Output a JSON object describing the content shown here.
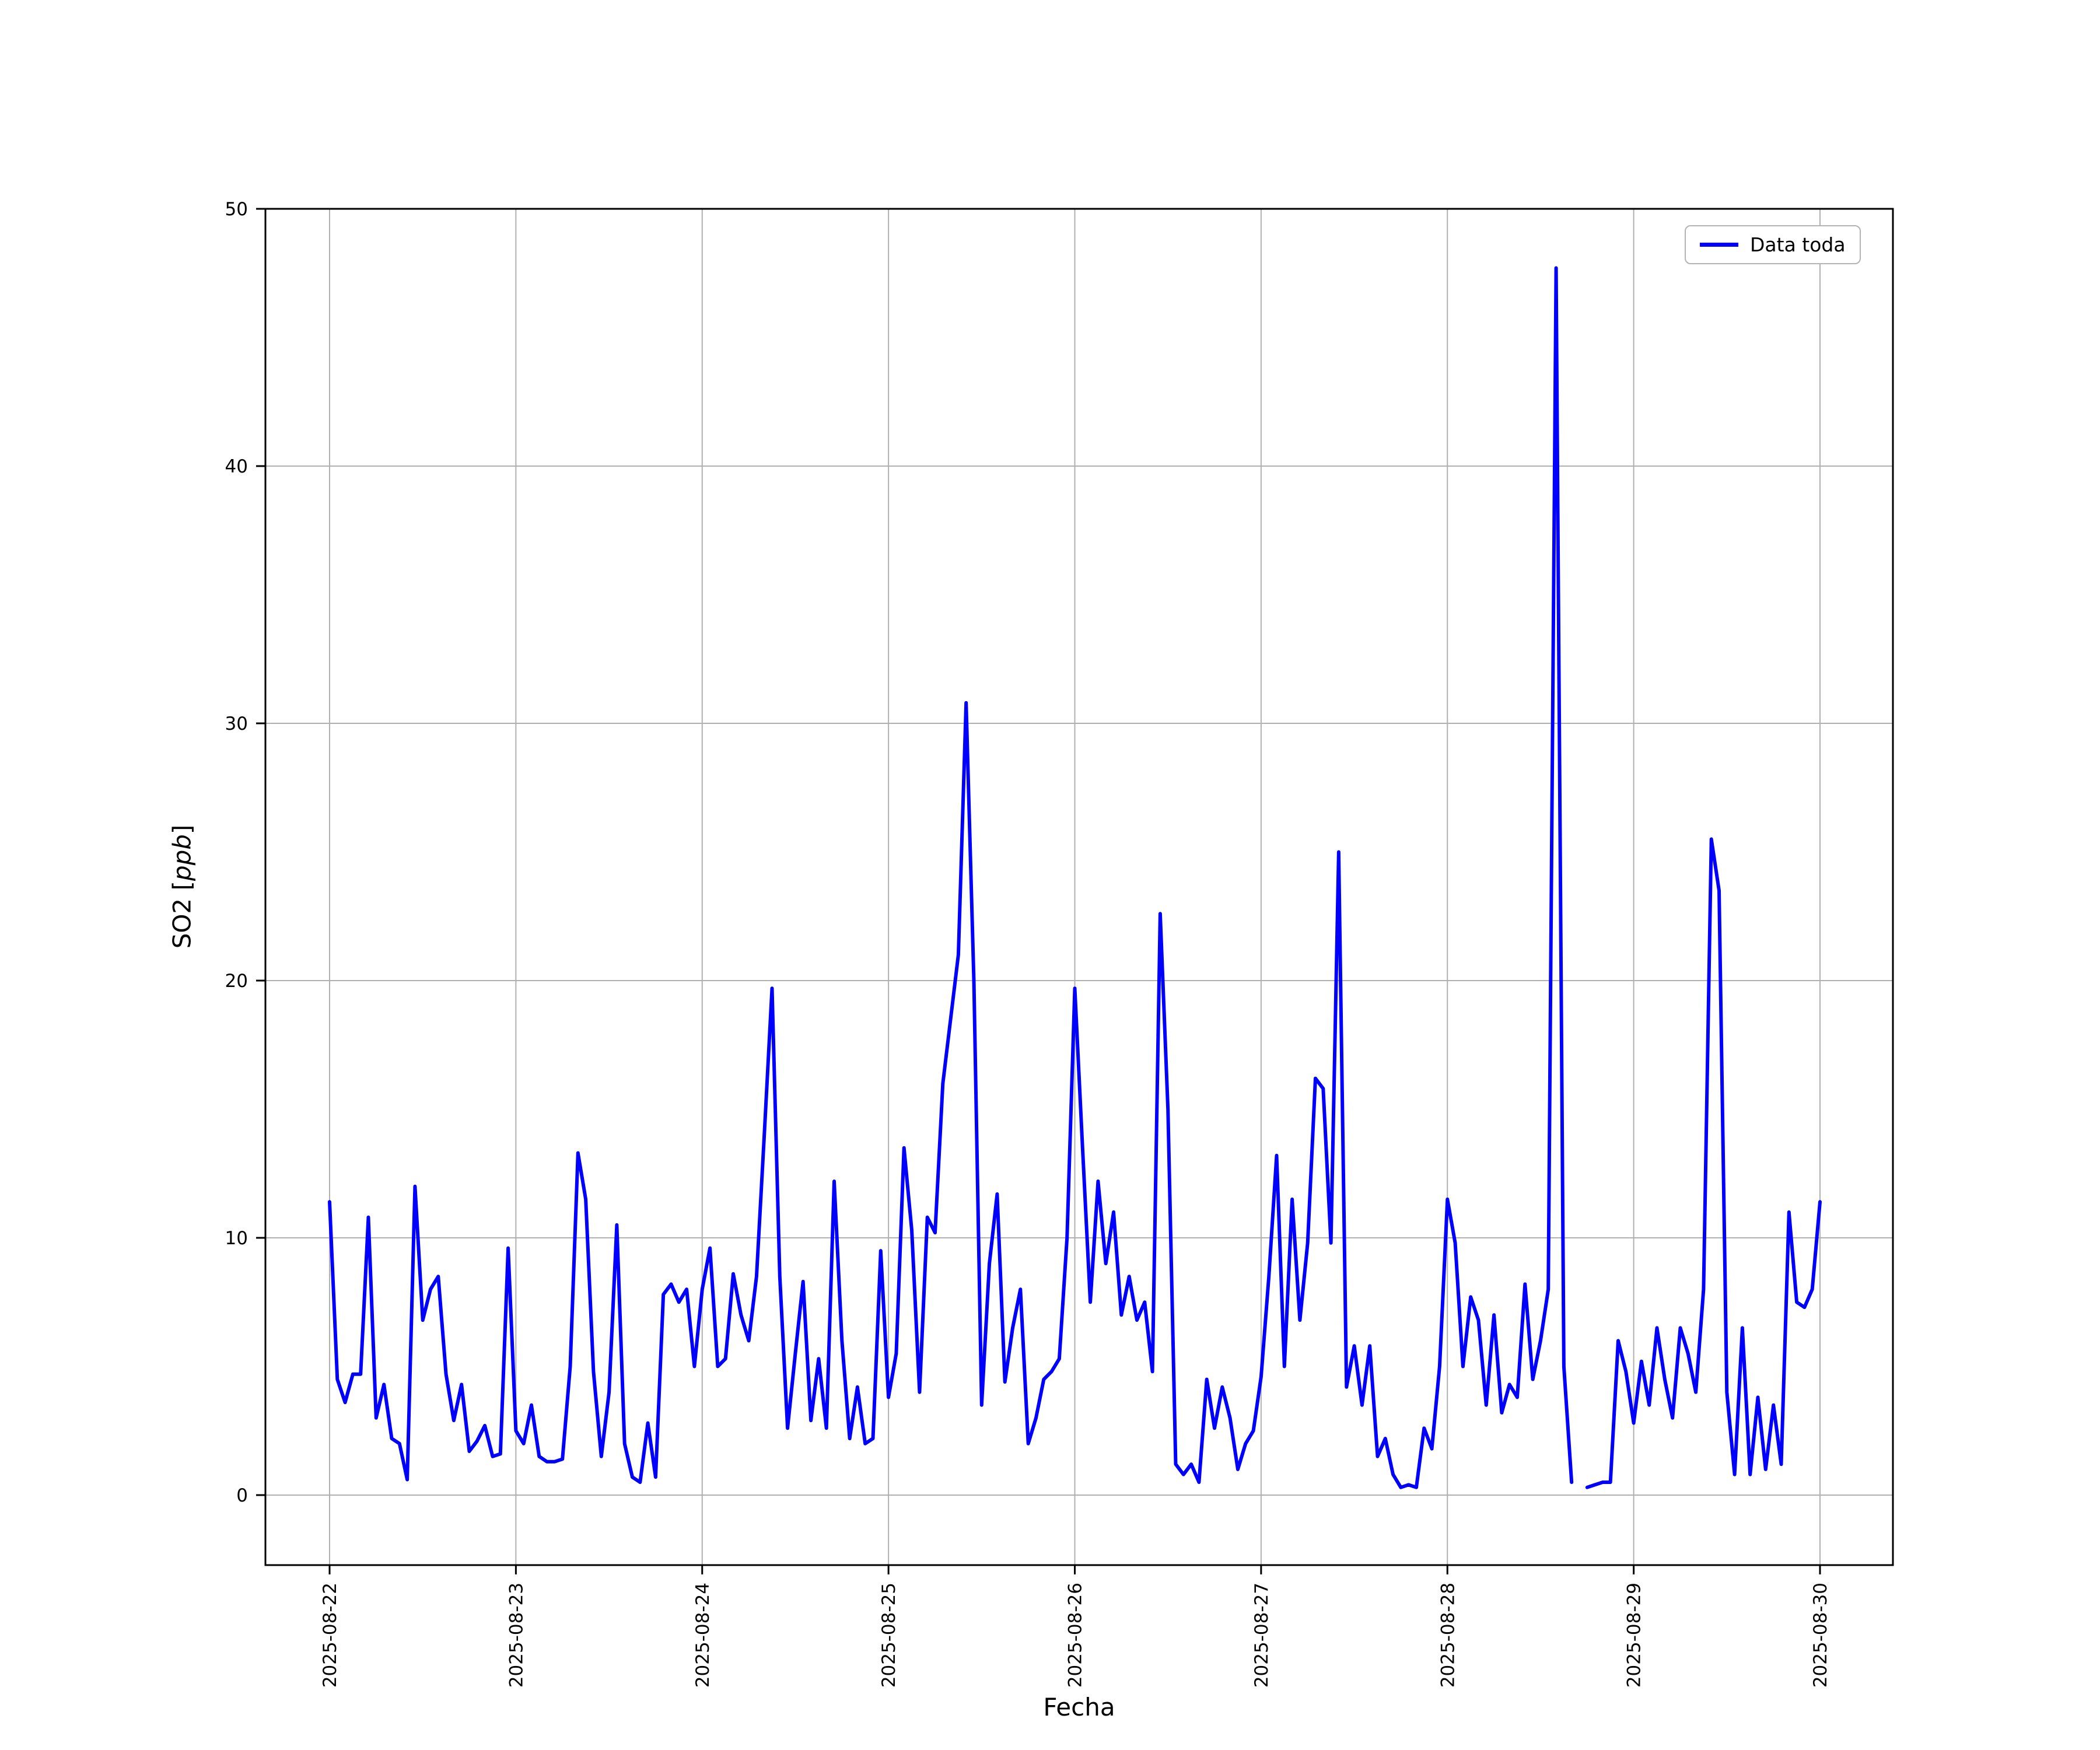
{
  "colors": {
    "line": "#0000ff",
    "grid": "#b0b0b0",
    "axes": "#000000",
    "background": "#ffffff",
    "legend_border": "#b3b3b3"
  },
  "chart_data": {
    "type": "line",
    "title": "",
    "xlabel": "Fecha",
    "ylabel": "SO2 [ppb]",
    "ylabel_pre": "SO2 [",
    "ylabel_var": "ppb",
    "ylabel_post": "]",
    "ylim": [
      0,
      50
    ],
    "yticks": [
      0,
      10,
      20,
      30,
      40,
      50
    ],
    "x_tick_labels": [
      "2025-08-22",
      "2025-08-23",
      "2025-08-24",
      "2025-08-25",
      "2025-08-26",
      "2025-08-27",
      "2025-08-28",
      "2025-08-29",
      "2025-08-30"
    ],
    "x_days_span": 8,
    "points_per_day": 24,
    "grid": true,
    "legend": {
      "label": "Data toda",
      "position": "upper right"
    },
    "series": [
      {
        "name": "Data toda",
        "color": "#0000ff",
        "values": [
          11.4,
          4.5,
          3.6,
          4.7,
          4.7,
          10.8,
          3.0,
          4.3,
          2.2,
          2.0,
          0.6,
          12.0,
          6.8,
          8.0,
          8.5,
          4.7,
          2.9,
          4.3,
          1.7,
          2.1,
          2.7,
          1.5,
          1.6,
          9.6,
          2.5,
          2.0,
          3.5,
          1.5,
          1.3,
          1.3,
          1.4,
          5.0,
          13.3,
          11.5,
          4.8,
          1.5,
          4.0,
          10.5,
          2.0,
          0.7,
          0.5,
          2.8,
          0.7,
          7.8,
          8.2,
          7.5,
          8.0,
          5.0,
          8.0,
          9.6,
          5.0,
          5.3,
          8.6,
          7.0,
          6.0,
          8.5,
          14.0,
          19.7,
          8.5,
          2.6,
          5.5,
          8.3,
          2.9,
          5.3,
          2.6,
          12.2,
          6.0,
          2.2,
          4.2,
          2.0,
          2.2,
          9.5,
          3.8,
          5.5,
          13.5,
          10.3,
          4.0,
          10.8,
          10.2,
          16.0,
          18.5,
          21.0,
          30.8,
          20.0,
          3.5,
          9.0,
          11.7,
          4.4,
          6.5,
          8.0,
          2.0,
          3.0,
          4.5,
          4.8,
          5.3,
          10.0,
          19.7,
          13.5,
          7.5,
          12.2,
          9.0,
          11.0,
          7.0,
          8.5,
          6.8,
          7.5,
          4.8,
          22.6,
          15.0,
          1.2,
          0.8,
          1.2,
          0.5,
          4.5,
          2.6,
          4.2,
          3.0,
          1.0,
          2.0,
          2.5,
          4.6,
          8.5,
          13.2,
          5.0,
          11.5,
          6.8,
          9.8,
          16.2,
          15.8,
          9.8,
          25.0,
          4.2,
          5.8,
          3.5,
          5.8,
          1.5,
          2.2,
          0.8,
          0.3,
          0.4,
          0.3,
          2.6,
          1.8,
          5.0,
          11.5,
          9.8,
          5.0,
          7.7,
          6.8,
          3.5,
          7.0,
          3.2,
          4.3,
          3.8,
          8.2,
          4.5,
          6.0,
          8.0,
          47.7,
          5.0,
          0.5,
          null,
          0.3,
          0.4,
          0.5,
          0.5,
          6.0,
          4.8,
          2.8,
          5.2,
          3.5,
          6.5,
          4.5,
          3.0,
          6.5,
          5.5,
          4.0,
          8.0,
          25.5,
          23.5,
          4.0,
          0.8,
          6.5,
          0.8,
          3.8,
          1.0,
          3.5,
          1.2,
          11.0,
          7.5,
          7.3,
          8.0,
          11.4
        ]
      }
    ]
  }
}
